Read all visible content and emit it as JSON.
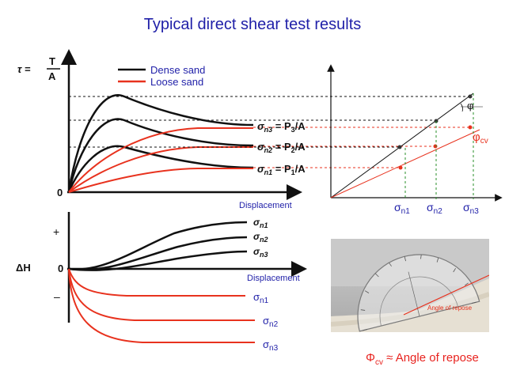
{
  "title": "Typical direct shear test results",
  "colors": {
    "title": "#1f1fa8",
    "dense": "#111111",
    "loose": "#e8321e",
    "caption": "#e8231f",
    "guide": "#2a8f2a"
  },
  "stress_plot": {
    "y_label_tau": "τ =",
    "y_label_T": "T",
    "y_label_A": "A",
    "origin": "0",
    "x_label": "Displacement",
    "legend": {
      "dense": "Dense sand",
      "loose": "Loose sand"
    },
    "curve_labels": [
      {
        "sigma": "σ",
        "sub": "n3",
        "eq": " = P",
        "psub": "3",
        "tail": "/A"
      },
      {
        "sigma": "σ",
        "sub": "n2",
        "eq": " = P",
        "psub": "2",
        "tail": "/A"
      },
      {
        "sigma": "σ",
        "sub": "n1",
        "eq": " = P",
        "psub": "1",
        "tail": "/A"
      }
    ]
  },
  "volume_plot": {
    "y_label": "ΔH",
    "plus": "+",
    "origin": "0",
    "minus": "–",
    "x_label": "Displacement",
    "dense_labels": [
      {
        "sigma": "σ",
        "sub": "n1"
      },
      {
        "sigma": "σ",
        "sub": "n2"
      },
      {
        "sigma": "σ",
        "sub": "n3"
      }
    ],
    "loose_labels": [
      {
        "sigma": "σ",
        "sub": "n1"
      },
      {
        "sigma": "σ",
        "sub": "n2"
      },
      {
        "sigma": "σ",
        "sub": "n3"
      }
    ]
  },
  "envelope_plot": {
    "phi": "φ",
    "phi_cv": "φ",
    "phi_cv_sub": "cv",
    "x_ticks": [
      {
        "sigma": "σ",
        "sub": "n1"
      },
      {
        "sigma": "σ",
        "sub": "n2"
      },
      {
        "sigma": "σ",
        "sub": "n3"
      }
    ]
  },
  "photo": {
    "label": "Angle of repose"
  },
  "caption": {
    "phi": "Φ",
    "sub": "cv",
    "text": " ≈ Angle of repose"
  }
}
